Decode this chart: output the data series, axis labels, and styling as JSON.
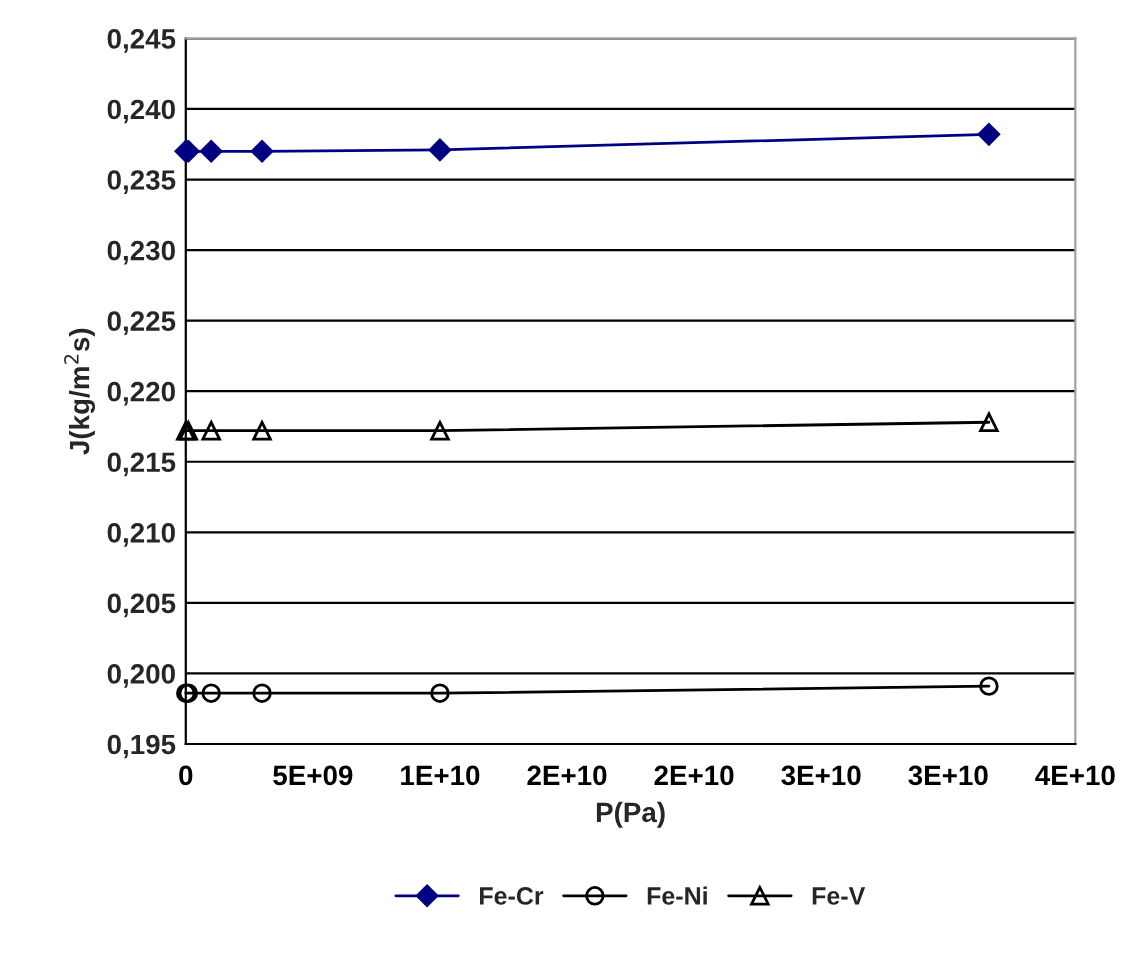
{
  "chart_data": {
    "type": "line",
    "xlabel": "P(Pa)",
    "ylabel": "J(kg/m$^{2}$s)",
    "x": [
      0,
      100000000,
      1000000000,
      3000000000,
      10000000000,
      31600000000
    ],
    "series": [
      {
        "name": "Fe-Cr",
        "color": "#000080",
        "marker": "diamond",
        "values": [
          0.237,
          0.237,
          0.237,
          0.237,
          0.2371,
          0.2382
        ]
      },
      {
        "name": "Fe-Ni",
        "color": "#000000",
        "marker": "circle",
        "values": [
          0.1986,
          0.1986,
          0.1986,
          0.1986,
          0.1986,
          0.1991
        ]
      },
      {
        "name": "Fe-V",
        "color": "#000000",
        "marker": "triangle",
        "values": [
          0.2172,
          0.2172,
          0.2172,
          0.2172,
          0.2172,
          0.2178
        ]
      }
    ],
    "xlim": [
      0,
      35000000000
    ],
    "xticks": [
      {
        "value": 0,
        "label": "0"
      },
      {
        "value": 5000000000,
        "label": "5E+09"
      },
      {
        "value": 10000000000,
        "label": "1E+10"
      },
      {
        "value": 15000000000,
        "label": "2E+10"
      },
      {
        "value": 20000000000,
        "label": "2E+10"
      },
      {
        "value": 25000000000,
        "label": "3E+10"
      },
      {
        "value": 30000000000,
        "label": "3E+10"
      },
      {
        "value": 35000000000,
        "label": "4E+10"
      }
    ],
    "ylim": [
      0.195,
      0.245
    ],
    "yticks": [
      {
        "value": 0.195,
        "label": "0,195"
      },
      {
        "value": 0.2,
        "label": "0,200"
      },
      {
        "value": 0.205,
        "label": "0,205"
      },
      {
        "value": 0.21,
        "label": "0,210"
      },
      {
        "value": 0.215,
        "label": "0,215"
      },
      {
        "value": 0.22,
        "label": "0,220"
      },
      {
        "value": 0.225,
        "label": "0,225"
      },
      {
        "value": 0.23,
        "label": "0,230"
      },
      {
        "value": 0.235,
        "label": "0,235"
      },
      {
        "value": 0.24,
        "label": "0,240"
      },
      {
        "value": 0.245,
        "label": "0,245"
      }
    ],
    "grid": "y",
    "legend": "bottom",
    "line_style": "solid"
  }
}
